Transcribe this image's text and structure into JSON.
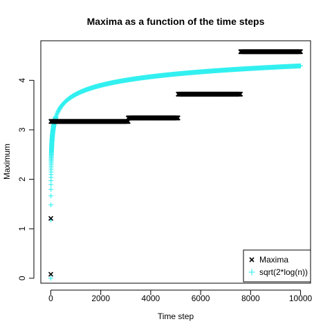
{
  "chart_data": {
    "type": "scatter",
    "title": "Maxima as a function of the time steps",
    "xlabel": "Time step",
    "ylabel": "Maximum",
    "xlim": [
      -400,
      10400
    ],
    "ylim": [
      -0.1,
      4.8
    ],
    "x_ticks": [
      0,
      2000,
      4000,
      6000,
      8000,
      10000
    ],
    "y_ticks": [
      0,
      1,
      2,
      3,
      4
    ],
    "grid": false,
    "legend_position": "bottom-right",
    "series": [
      {
        "name": "Maxima",
        "marker": "x",
        "color": "#000000",
        "points": [
          {
            "x": 1,
            "y": 0.08
          },
          {
            "x": 2,
            "y": 1.21
          }
        ],
        "steps": [
          {
            "x_start": 3,
            "x_end": 3100,
            "y": 3.17
          },
          {
            "x_start": 3100,
            "x_end": 5100,
            "y": 3.24
          },
          {
            "x_start": 5100,
            "x_end": 7600,
            "y": 3.72
          },
          {
            "x_start": 7600,
            "x_end": 10000,
            "y": 4.58
          }
        ]
      },
      {
        "name": "sqrt(2*log(n))",
        "marker": "+",
        "color": "#33f0f0",
        "function": "sqrt(2*log(n))",
        "n_range": [
          1,
          10000
        ]
      }
    ]
  }
}
